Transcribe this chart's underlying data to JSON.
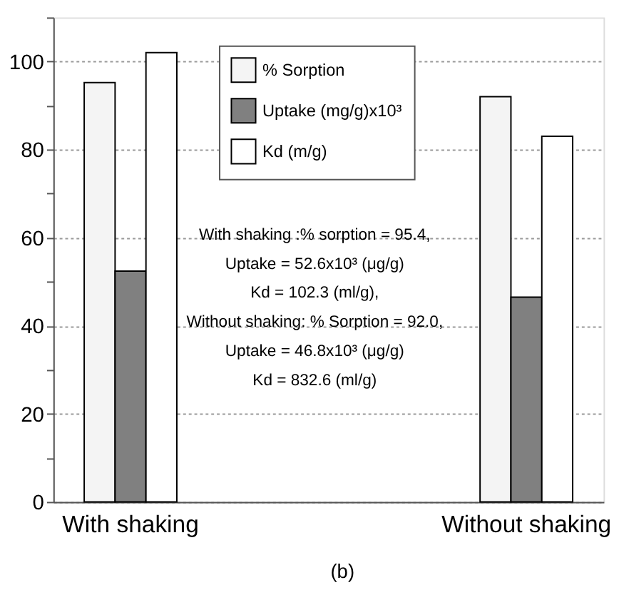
{
  "chart_data": {
    "type": "bar",
    "categories": [
      "With shaking",
      "Without shaking"
    ],
    "series": [
      {
        "name": "% Sorption",
        "color": "#f4f4f4",
        "values": [
          95.2,
          92.0
        ]
      },
      {
        "name": "Uptake (mg/g)x10³",
        "color": "#808080",
        "values": [
          52.4,
          46.5
        ]
      },
      {
        "name": "Kd (m/g)",
        "color": "#ffffff",
        "values": [
          102.0,
          83.0
        ]
      }
    ],
    "ylim": [
      0,
      110
    ],
    "yticks": [
      0,
      {
        "value": 10,
        "label": null
      },
      20,
      {
        "value": 30,
        "label": null
      },
      40,
      {
        "value": 50,
        "label": null
      },
      60,
      {
        "value": 70,
        "label": null
      },
      80,
      {
        "value": 90,
        "label": null
      },
      100,
      {
        "value": 110,
        "label": null
      }
    ],
    "grid": "y",
    "legend": "top",
    "annotations": [
      "With shaking :% sorption = 95.4,",
      "Uptake = 52.6x10³ (μg/g)",
      "Kd = 102.3 (ml/g),",
      "Without shaking: % Sorption = 92.0,",
      "Uptake = 46.8x10³ (μg/g)",
      "Kd = 832.6 (ml/g)",
      "(b)"
    ]
  }
}
